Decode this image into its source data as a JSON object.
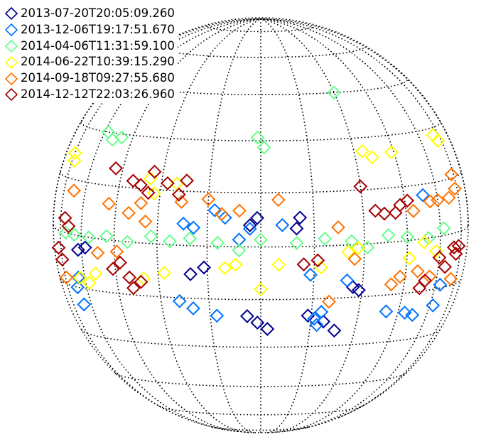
{
  "chart_data": {
    "type": "scatter",
    "title": "",
    "xlabel": "",
    "ylabel": "",
    "projection": "orthographic solar disk",
    "grid": "dotted heliographic longitude/latitude lines",
    "marker": "diamond (open)",
    "legend_position": "top-left",
    "series": [
      {
        "name": "2013-07-20T20:05:09.260",
        "color": "#00008f",
        "points": [
          [
            -62,
            -4
          ],
          [
            -58,
            -3
          ],
          [
            -20,
            -8
          ],
          [
            -16,
            -6
          ],
          [
            -4,
            -20
          ],
          [
            -1,
            -22
          ],
          [
            2,
            -24
          ],
          [
            14,
            -20
          ],
          [
            19,
            -22
          ],
          [
            23,
            -25
          ],
          [
            -3,
            6
          ],
          [
            -1,
            8
          ],
          [
            10,
            5
          ],
          [
            11,
            8
          ],
          [
            27,
            -12
          ],
          [
            29,
            -13
          ]
        ]
      },
      {
        "name": "2013-12-06T19:17:51.670",
        "color": "#0073ff",
        "points": [
          [
            -66,
            -15
          ],
          [
            -64,
            -12
          ],
          [
            -65,
            -20
          ],
          [
            -22,
            6
          ],
          [
            -19,
            5
          ],
          [
            -13,
            10
          ],
          [
            -10,
            8
          ],
          [
            -24,
            -16
          ],
          [
            -20,
            -18
          ],
          [
            -13,
            -20
          ],
          [
            -6,
            2
          ],
          [
            -3,
            5
          ],
          [
            6,
            6
          ],
          [
            14,
            -8
          ],
          [
            16,
            -21
          ],
          [
            18,
            -19
          ],
          [
            17,
            -23
          ],
          [
            25,
            -10
          ],
          [
            40,
            -20
          ],
          [
            48,
            -21
          ],
          [
            52,
            -22
          ],
          [
            53,
            12
          ],
          [
            62,
            -20
          ],
          [
            63,
            -14
          ]
        ]
      },
      {
        "name": "2014-04-06T11:31:59.100",
        "color": "#66ff8c",
        "points": [
          [
            -58,
            30
          ],
          [
            -54,
            28
          ],
          [
            -50,
            29
          ],
          [
            -1,
            31
          ],
          [
            1,
            28
          ],
          [
            -70,
            0
          ],
          [
            -64,
            0
          ],
          [
            -56,
            0
          ],
          [
            -48,
            1
          ],
          [
            -40,
            0
          ],
          [
            -32,
            2
          ],
          [
            -26,
            1
          ],
          [
            -20,
            2
          ],
          [
            -12,
            1
          ],
          [
            -6,
            -1
          ],
          [
            0,
            2
          ],
          [
            10,
            1
          ],
          [
            18,
            2
          ],
          [
            26,
            1
          ],
          [
            31,
            -1
          ],
          [
            38,
            2
          ],
          [
            45,
            1
          ],
          [
            54,
            0
          ],
          [
            62,
            2
          ],
          [
            30,
            45
          ]
        ]
      },
      {
        "name": "2014-06-22T10:39:15.290",
        "color": "#ffff00",
        "points": [
          [
            -75,
            22
          ],
          [
            -73,
            20
          ],
          [
            -63,
            -12
          ],
          [
            -58,
            -13
          ],
          [
            -54,
            -10
          ],
          [
            -35,
            -10
          ],
          [
            -28,
            -8
          ],
          [
            -10,
            -6
          ],
          [
            -7,
            -5
          ],
          [
            -25,
            17
          ],
          [
            -32,
            14
          ],
          [
            -34,
            18
          ],
          [
            0,
            -12
          ],
          [
            5,
            -5
          ],
          [
            17,
            -6
          ],
          [
            25,
            -2
          ],
          [
            28,
            -1
          ],
          [
            33,
            26
          ],
          [
            36,
            24
          ],
          [
            44,
            25
          ],
          [
            46,
            -5
          ],
          [
            52,
            -1
          ],
          [
            58,
            -4
          ],
          [
            70,
            28
          ],
          [
            72,
            26
          ]
        ]
      },
      {
        "name": "2014-09-18T09:27:55.680",
        "color": "#ff7300",
        "points": [
          [
            -74,
            -13
          ],
          [
            -67,
            12
          ],
          [
            -52,
            -4
          ],
          [
            -44,
            -3
          ],
          [
            -48,
            10
          ],
          [
            -40,
            8
          ],
          [
            -34,
            6
          ],
          [
            -36,
            11
          ],
          [
            -23,
            12
          ],
          [
            -15,
            13
          ],
          [
            -11,
            9
          ],
          [
            -6,
            10
          ],
          [
            5,
            13
          ],
          [
            20,
            -16
          ],
          [
            22,
            5
          ],
          [
            27,
            -4
          ],
          [
            40,
            -12
          ],
          [
            43,
            -10
          ],
          [
            48,
            8
          ],
          [
            50,
            -9
          ],
          [
            56,
            -11
          ],
          [
            56,
            10
          ],
          [
            60,
            10
          ],
          [
            67,
            10
          ],
          [
            70,
            -13
          ],
          [
            73,
            12
          ],
          [
            73,
            16
          ]
        ]
      },
      {
        "name": "2014-12-12T22:03:26.960",
        "color": "#a60000",
        "points": [
          [
            -71,
            4
          ],
          [
            -68,
            2
          ],
          [
            -78,
            -5
          ],
          [
            -75,
            -8
          ],
          [
            -46,
            -8
          ],
          [
            -43,
            -6
          ],
          [
            -40,
            -10
          ],
          [
            -39,
            -13
          ],
          [
            -36,
            -11
          ],
          [
            -48,
            20
          ],
          [
            -40,
            17
          ],
          [
            -37,
            16
          ],
          [
            -34,
            14
          ],
          [
            -33,
            20
          ],
          [
            -28,
            17
          ],
          [
            -24,
            14
          ],
          [
            -22,
            18
          ],
          [
            12,
            -5
          ],
          [
            16,
            -4
          ],
          [
            30,
            16
          ],
          [
            34,
            9
          ],
          [
            37,
            8
          ],
          [
            41,
            8
          ],
          [
            43,
            10
          ],
          [
            46,
            11
          ],
          [
            52,
            -14
          ],
          [
            54,
            -12
          ],
          [
            60,
            -6
          ],
          [
            64,
            -9
          ],
          [
            69,
            -4
          ],
          [
            71,
            -6
          ],
          [
            73,
            -4
          ]
        ]
      }
    ]
  }
}
